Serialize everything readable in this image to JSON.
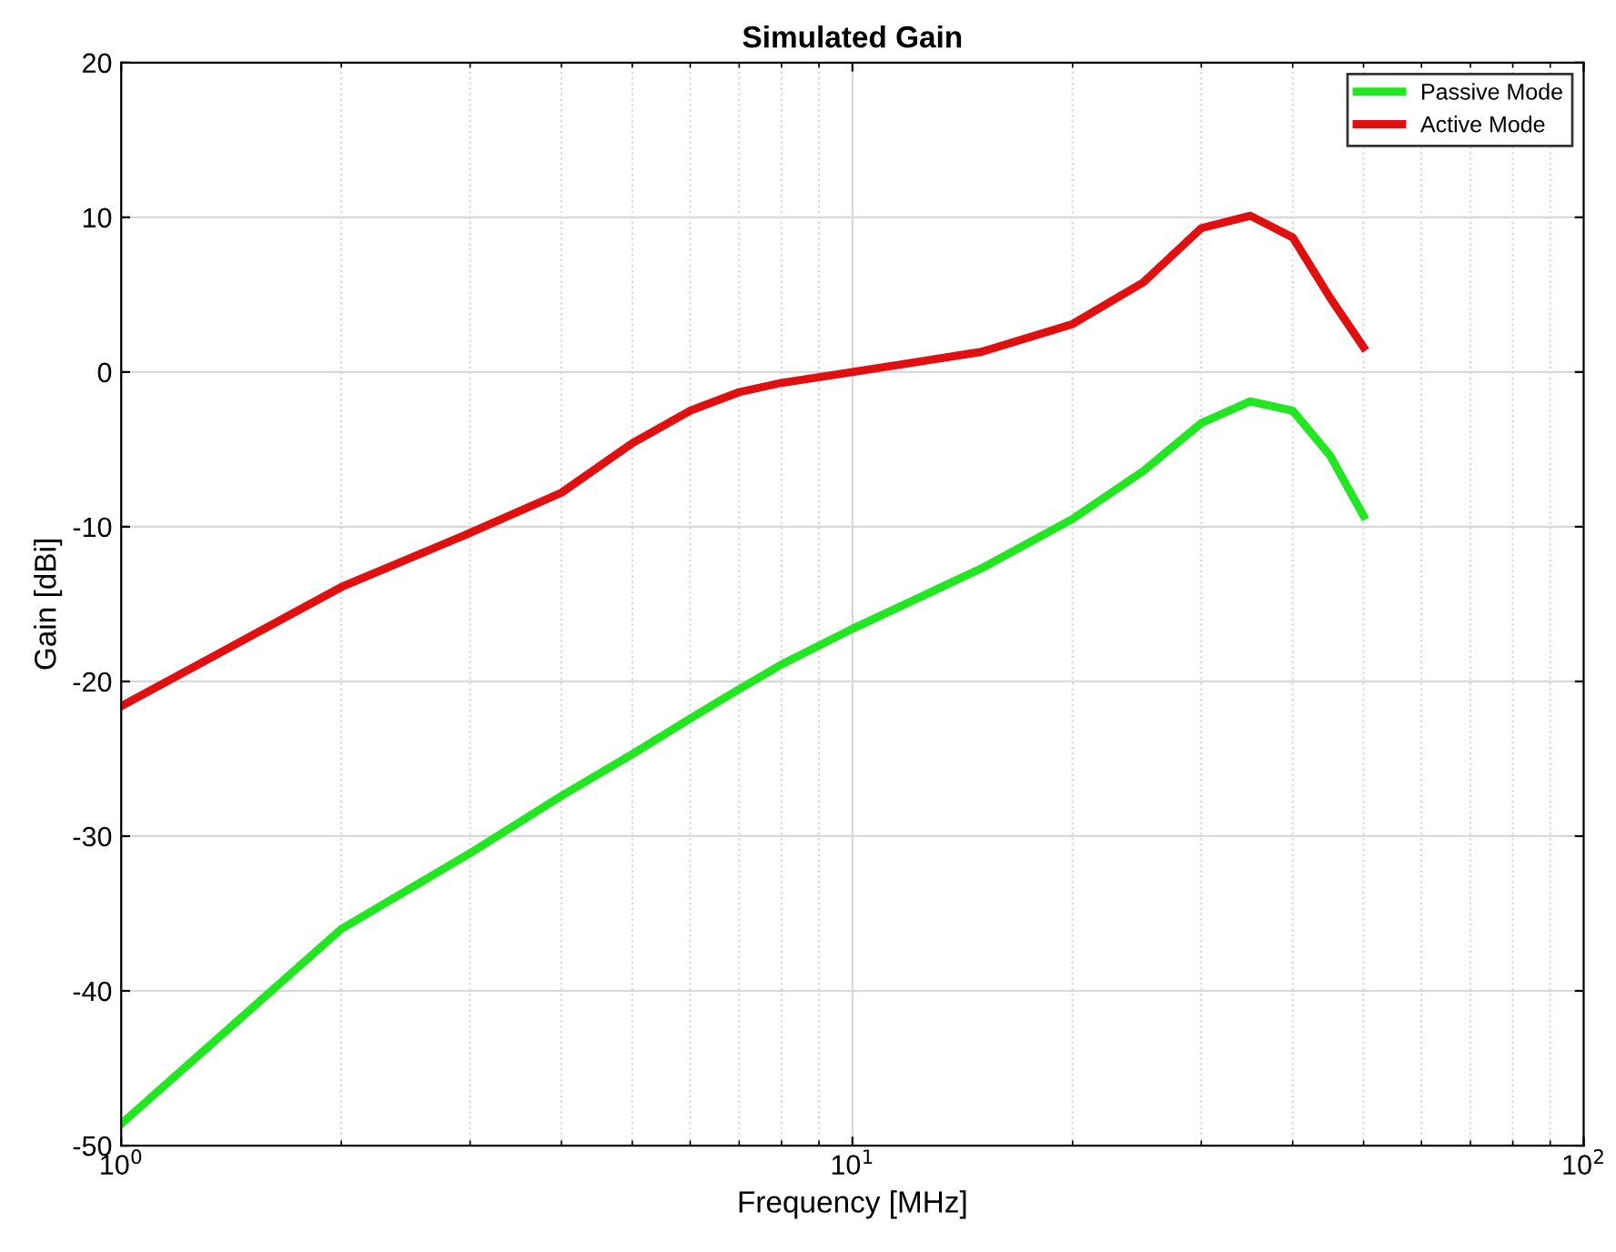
{
  "chart_data": {
    "type": "line",
    "title": "Simulated Gain",
    "xlabel": "Frequency [MHz]",
    "ylabel": "Gain [dBi]",
    "log": "x",
    "xlim": [
      1,
      100
    ],
    "xticks": [
      {
        "value": 1,
        "label": "10$^{0}$"
      },
      {
        "value": 10,
        "label": "10$^{1}$"
      },
      {
        "value": 100,
        "label": "10$^{2}$"
      }
    ],
    "ylim": [
      -50,
      20
    ],
    "yticks": [
      -50,
      -40,
      -30,
      -20,
      -10,
      0,
      10,
      20
    ],
    "grid": true,
    "legend": "top right",
    "line_style": "solid",
    "marker": "none",
    "series": [
      {
        "name": "Passive Mode",
        "color": "#22e622",
        "x": [
          1,
          2,
          3,
          4,
          5,
          6,
          7,
          8,
          10,
          15,
          20,
          25,
          30,
          35,
          40,
          45,
          50
        ],
        "values": [
          -48.6,
          -36,
          -31.1,
          -27.4,
          -24.7,
          -22.4,
          -20.5,
          -18.9,
          -16.6,
          -12.7,
          -9.5,
          -6.4,
          -3.3,
          -1.9,
          -2.5,
          -5.4,
          -9.3
        ]
      },
      {
        "name": "Active Mode",
        "color": "#e01010",
        "x": [
          1,
          2,
          3,
          4,
          5,
          6,
          7,
          8,
          10,
          15,
          20,
          25,
          30,
          35,
          40,
          45,
          50
        ],
        "values": [
          -21.6,
          -13.9,
          -10.4,
          -7.8,
          -4.6,
          -2.5,
          -1.3,
          -0.7,
          0,
          1.3,
          3.1,
          5.8,
          9.3,
          10.1,
          8.7,
          4.8,
          1.6
        ]
      }
    ]
  }
}
